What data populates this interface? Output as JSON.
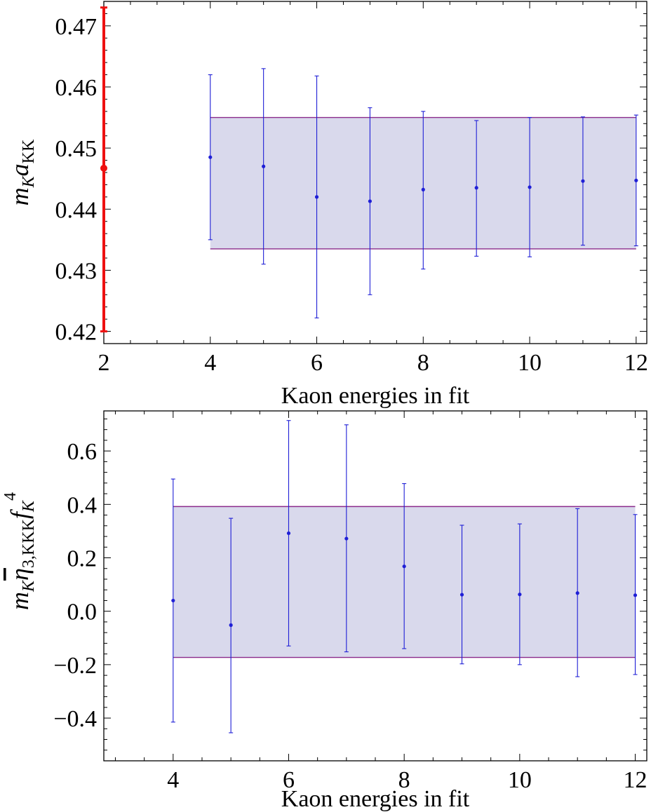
{
  "chart_data": [
    {
      "type": "scatter",
      "xlabel": "Kaon energies in fit",
      "ylabel": {
        "main": "m",
        "sub": "K",
        "main2": "a",
        "sub2": "KK"
      },
      "xlim": [
        2,
        12.2
      ],
      "ylim": [
        0.418,
        0.474
      ],
      "xticks": [
        2,
        4,
        6,
        8,
        10,
        12
      ],
      "xtick_labels": [
        "2",
        "4",
        "6",
        "8",
        "10",
        "12"
      ],
      "yticks": [
        0.42,
        0.43,
        0.44,
        0.45,
        0.46,
        0.47
      ],
      "ytick_labels": [
        "0.42",
        "0.43",
        "0.44",
        "0.45",
        "0.46",
        "0.47"
      ],
      "band": {
        "x": [
          4,
          12
        ],
        "y": [
          0.4335,
          0.455
        ],
        "color": "#d9d9ec",
        "edge_color": "#8a2a8a"
      },
      "highlight": {
        "x": 2,
        "y": 0.4467,
        "err_low": 0.42,
        "err_high": 0.473,
        "color": "#ee1111"
      },
      "points_color": "#1f1fd6",
      "points": [
        {
          "x": 4,
          "y": 0.4485,
          "low": 0.435,
          "high": 0.462
        },
        {
          "x": 5,
          "y": 0.447,
          "low": 0.431,
          "high": 0.463
        },
        {
          "x": 6,
          "y": 0.442,
          "low": 0.4222,
          "high": 0.4618
        },
        {
          "x": 7,
          "y": 0.4413,
          "low": 0.426,
          "high": 0.4566
        },
        {
          "x": 8,
          "y": 0.4432,
          "low": 0.4302,
          "high": 0.456
        },
        {
          "x": 9,
          "y": 0.4435,
          "low": 0.4323,
          "high": 0.4545
        },
        {
          "x": 10,
          "y": 0.4436,
          "low": 0.4322,
          "high": 0.455
        },
        {
          "x": 11,
          "y": 0.4446,
          "low": 0.4341,
          "high": 0.4551
        },
        {
          "x": 12,
          "y": 0.4447,
          "low": 0.434,
          "high": 0.4554
        }
      ]
    },
    {
      "type": "scatter",
      "xlabel": "Kaon energies in fit",
      "ylabel": {
        "main": "m",
        "sub": "K",
        "main2": "η",
        "sub2": "3,KKK",
        "main3": "f",
        "sub3": "K",
        "sup3": "4"
      },
      "xlim": [
        2.8,
        12.2
      ],
      "ylim": [
        -0.56,
        0.75
      ],
      "xticks": [
        4,
        6,
        8,
        10,
        12
      ],
      "xtick_labels": [
        "4",
        "6",
        "8",
        "10",
        "12"
      ],
      "yticks": [
        -0.4,
        -0.2,
        0.0,
        0.2,
        0.4,
        0.6
      ],
      "ytick_labels": [
        "−0.4",
        "−0.2",
        "0.0",
        "0.2",
        "0.4",
        "0.6"
      ],
      "band": {
        "x": [
          4,
          12
        ],
        "y": [
          -0.173,
          0.392
        ],
        "color": "#d9d9ec",
        "edge_color": "#8a2a8a"
      },
      "points_color": "#1f1fd6",
      "points": [
        {
          "x": 4,
          "y": 0.04,
          "low": -0.415,
          "high": 0.495
        },
        {
          "x": 5,
          "y": -0.052,
          "low": -0.455,
          "high": 0.348
        },
        {
          "x": 6,
          "y": 0.292,
          "low": -0.13,
          "high": 0.714
        },
        {
          "x": 7,
          "y": 0.272,
          "low": -0.152,
          "high": 0.698
        },
        {
          "x": 8,
          "y": 0.168,
          "low": -0.14,
          "high": 0.478
        },
        {
          "x": 9,
          "y": 0.062,
          "low": -0.197,
          "high": 0.322
        },
        {
          "x": 10,
          "y": 0.063,
          "low": -0.2,
          "high": 0.327
        },
        {
          "x": 11,
          "y": 0.068,
          "low": -0.245,
          "high": 0.384
        },
        {
          "x": 12,
          "y": 0.06,
          "low": -0.237,
          "high": 0.362
        }
      ]
    }
  ]
}
